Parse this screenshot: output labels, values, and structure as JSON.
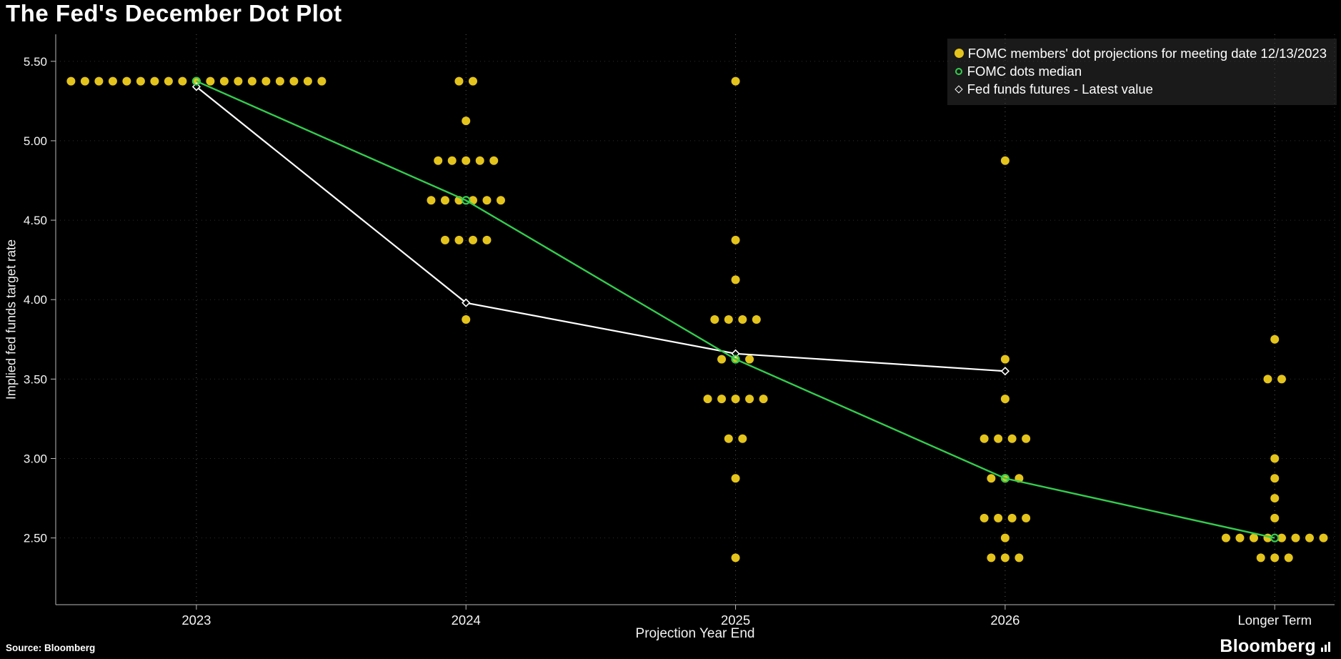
{
  "page": {
    "title": "The Fed's December Dot Plot",
    "source_note": "Source: Bloomberg",
    "brand": "Bloomberg"
  },
  "axes": {
    "xlabel": "Projection Year End",
    "ylabel": "Implied fed funds target rate"
  },
  "legend": {
    "items": [
      {
        "label": "FOMC members' dot projections for meeting date 12/13/2023",
        "marker": "filled-dot",
        "color": "#e4c41c"
      },
      {
        "label": "FOMC dots median",
        "marker": "open-circle",
        "color": "#33cc4e"
      },
      {
        "label": "Fed funds futures - Latest value",
        "marker": "open-diamond",
        "color": "#ffffff"
      }
    ]
  },
  "chart_data": {
    "type": "scatter",
    "title": "The Fed's December Dot Plot",
    "xlabel": "Projection Year End",
    "ylabel": "Implied fed funds target rate",
    "categories": [
      "2023",
      "2024",
      "2025",
      "2026",
      "Longer Term"
    ],
    "y_ticks": [
      5.5,
      5.0,
      4.5,
      4.0,
      3.5,
      3.0,
      2.5
    ],
    "y_tick_labels": [
      "5.50",
      "5.00",
      "4.50",
      "4.00",
      "3.50",
      "3.00",
      "2.50"
    ],
    "ylim": [
      2.08,
      5.67
    ],
    "grid": "dotted",
    "legend_position": "top-right",
    "series": [
      {
        "name": "FOMC members' dot projections for meeting date 12/13/2023",
        "type": "dot-cluster",
        "color": "#e4c41c",
        "clusters": [
          {
            "category": "2023",
            "levels": [
              {
                "rate": 5.375,
                "count": 19
              }
            ]
          },
          {
            "category": "2024",
            "levels": [
              {
                "rate": 5.375,
                "count": 2
              },
              {
                "rate": 5.125,
                "count": 1
              },
              {
                "rate": 4.875,
                "count": 5
              },
              {
                "rate": 4.625,
                "count": 6
              },
              {
                "rate": 4.375,
                "count": 4
              },
              {
                "rate": 3.875,
                "count": 1
              }
            ]
          },
          {
            "category": "2025",
            "levels": [
              {
                "rate": 5.375,
                "count": 1
              },
              {
                "rate": 4.375,
                "count": 1
              },
              {
                "rate": 4.125,
                "count": 1
              },
              {
                "rate": 3.875,
                "count": 4
              },
              {
                "rate": 3.625,
                "count": 3
              },
              {
                "rate": 3.375,
                "count": 5
              },
              {
                "rate": 3.125,
                "count": 2
              },
              {
                "rate": 2.875,
                "count": 1
              },
              {
                "rate": 2.375,
                "count": 1
              }
            ]
          },
          {
            "category": "2026",
            "levels": [
              {
                "rate": 4.875,
                "count": 1
              },
              {
                "rate": 3.625,
                "count": 1
              },
              {
                "rate": 3.375,
                "count": 1
              },
              {
                "rate": 3.125,
                "count": 4
              },
              {
                "rate": 2.875,
                "count": 3
              },
              {
                "rate": 2.625,
                "count": 4
              },
              {
                "rate": 2.5,
                "count": 1
              },
              {
                "rate": 2.375,
                "count": 3
              }
            ]
          },
          {
            "category": "Longer Term",
            "levels": [
              {
                "rate": 3.75,
                "count": 1
              },
              {
                "rate": 3.5,
                "count": 2
              },
              {
                "rate": 3.0,
                "count": 1
              },
              {
                "rate": 2.875,
                "count": 1
              },
              {
                "rate": 2.75,
                "count": 1
              },
              {
                "rate": 2.625,
                "count": 1
              },
              {
                "rate": 2.5,
                "count": 8
              },
              {
                "rate": 2.375,
                "count": 3
              }
            ]
          }
        ]
      },
      {
        "name": "FOMC dots median",
        "type": "line",
        "color": "#33cc4e",
        "marker": "open-circle",
        "categories": [
          "2023",
          "2024",
          "2025",
          "2026",
          "Longer Term"
        ],
        "values": [
          5.375,
          4.625,
          3.625,
          2.875,
          2.5
        ]
      },
      {
        "name": "Fed funds futures - Latest value",
        "type": "line",
        "color": "#ffffff",
        "marker": "open-diamond",
        "categories": [
          "2023",
          "2024",
          "2025",
          "2026"
        ],
        "values": [
          5.34,
          3.98,
          3.66,
          3.55
        ]
      }
    ]
  }
}
